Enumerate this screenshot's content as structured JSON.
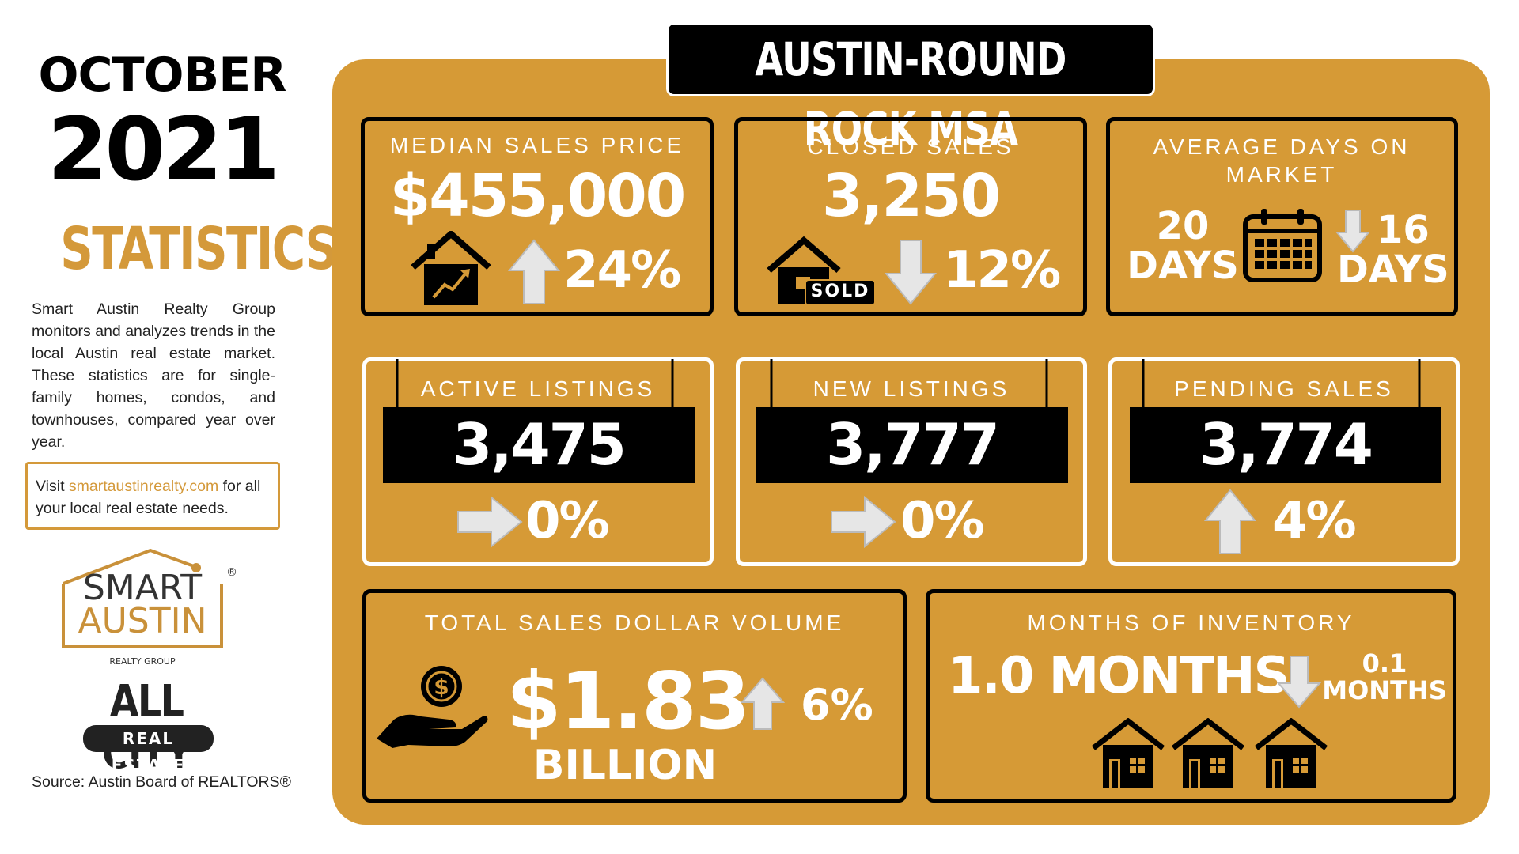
{
  "period": {
    "month": "OCTOBER",
    "year": "2021"
  },
  "heading": "STATISTICS",
  "description": "Smart Austin Realty Group monitors and analyzes trends in the local Austin real estate market. These statistics are for single-family homes, condos, and townhouses, compared year over year.",
  "visit": {
    "prefix": "Visit",
    "link": "smartaustinrealty.com",
    "suffix": "for all your local real estate needs."
  },
  "logos": {
    "smart": "SMART",
    "austin": "AUSTIN",
    "mark": "®",
    "realty": "REALTY GROUP",
    "allcity": "ALL CITY",
    "realestate": "REAL ESTATE"
  },
  "source": "Source: Austin Board of REALTORS®",
  "title": "AUSTIN-ROUND ROCK MSA",
  "cards": [
    {
      "label": "MEDIAN SALES PRICE",
      "value": "$455,000",
      "change": "24%",
      "direction": "up"
    },
    {
      "label": "CLOSED SALES",
      "value": "3,250",
      "badge": "SOLD",
      "change": "12%",
      "direction": "down"
    },
    {
      "label": "AVERAGE DAYS ON MARKET",
      "value": "20",
      "value_unit": "DAYS",
      "change": "16",
      "change_unit": "DAYS",
      "direction": "down"
    },
    {
      "label": "ACTIVE LISTINGS",
      "value": "3,475",
      "change": "0%",
      "direction": "right"
    },
    {
      "label": "NEW LISTINGS",
      "value": "3,777",
      "change": "0%",
      "direction": "right"
    },
    {
      "label": "PENDING SALES",
      "value": "3,774",
      "change": "4%",
      "direction": "up"
    },
    {
      "label": "TOTAL SALES DOLLAR VOLUME",
      "value": "$1.83",
      "value_unit": "BILLION",
      "change": "6%",
      "direction": "up"
    },
    {
      "label": "MONTHS OF INVENTORY",
      "value": "1.0 MONTHS",
      "change": "0.1",
      "change_unit": "MONTHS",
      "direction": "down"
    }
  ]
}
